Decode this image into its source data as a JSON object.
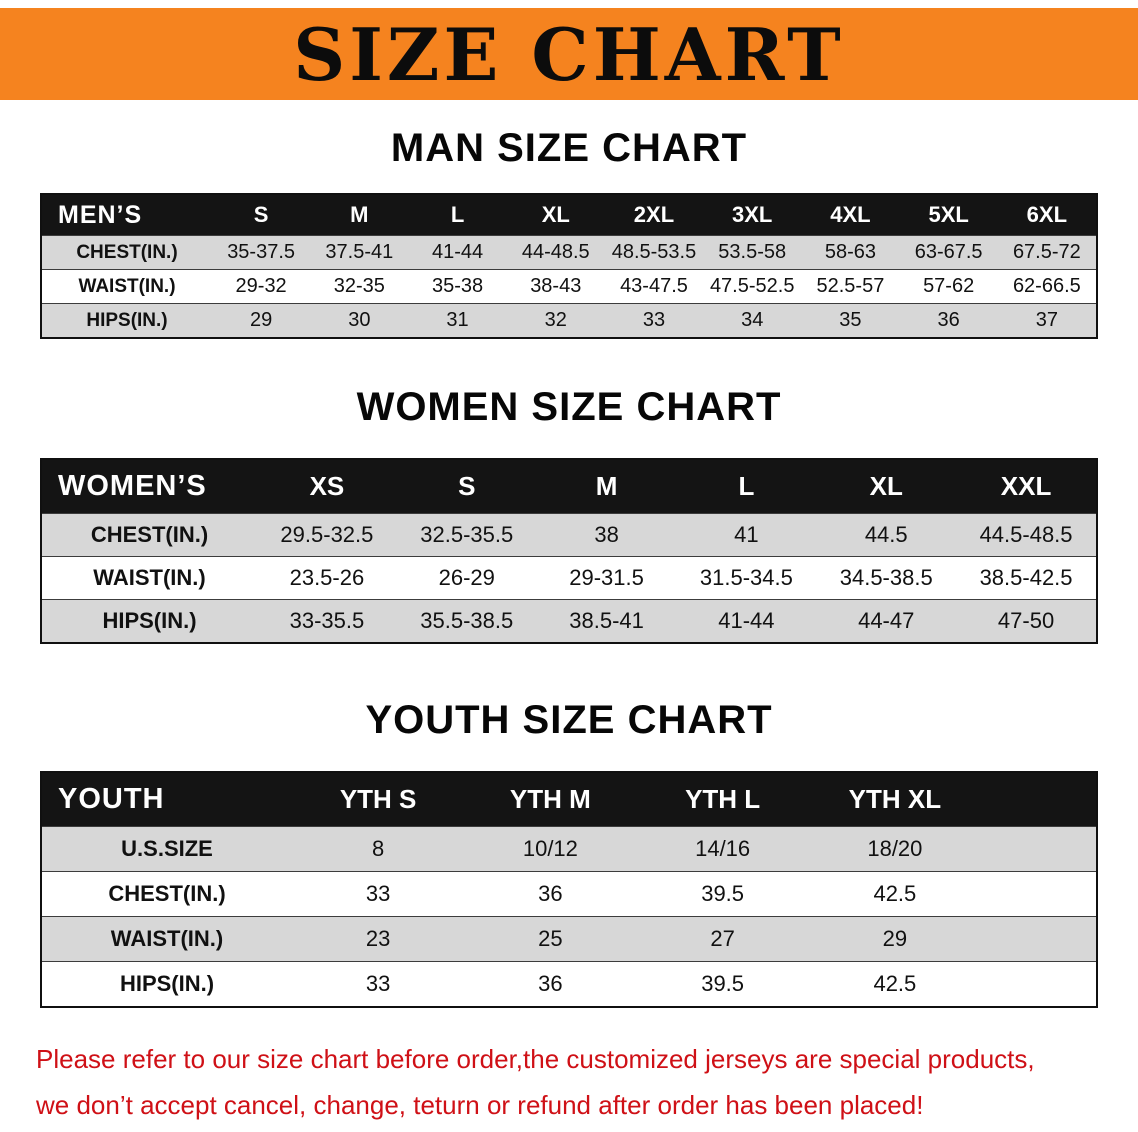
{
  "banner": {
    "title": "SIZE CHART",
    "bg_color": "#f5831f",
    "title_color": "#0c0c0c"
  },
  "sections": {
    "men": {
      "heading": "MAN SIZE CHART",
      "table": {
        "corner": "MEN’S",
        "columns": [
          "S",
          "M",
          "L",
          "XL",
          "2XL",
          "3XL",
          "4XL",
          "5XL",
          "6XL"
        ],
        "rows": [
          {
            "label": "CHEST(IN.)",
            "values": [
              "35-37.5",
              "37.5-41",
              "41-44",
              "44-48.5",
              "48.5-53.5",
              "53.5-58",
              "58-63",
              "63-67.5",
              "67.5-72"
            ]
          },
          {
            "label": "WAIST(IN.)",
            "values": [
              "29-32",
              "32-35",
              "35-38",
              "38-43",
              "43-47.5",
              "47.5-52.5",
              "52.5-57",
              "57-62",
              "62-66.5"
            ]
          },
          {
            "label": "HIPS(IN.)",
            "values": [
              "29",
              "30",
              "31",
              "32",
              "33",
              "34",
              "35",
              "36",
              "37"
            ]
          }
        ]
      }
    },
    "women": {
      "heading": "WOMEN SIZE CHART",
      "table": {
        "corner": "WOMEN’S",
        "columns": [
          "XS",
          "S",
          "M",
          "L",
          "XL",
          "XXL"
        ],
        "rows": [
          {
            "label": "CHEST(IN.)",
            "values": [
              "29.5-32.5",
              "32.5-35.5",
              "38",
              "41",
              "44.5",
              "44.5-48.5"
            ]
          },
          {
            "label": "WAIST(IN.)",
            "values": [
              "23.5-26",
              "26-29",
              "29-31.5",
              "31.5-34.5",
              "34.5-38.5",
              "38.5-42.5"
            ]
          },
          {
            "label": "HIPS(IN.)",
            "values": [
              "33-35.5",
              "35.5-38.5",
              "38.5-41",
              "41-44",
              "44-47",
              "47-50"
            ]
          }
        ]
      }
    },
    "youth": {
      "heading": "YOUTH SIZE CHART",
      "table": {
        "corner": "YOUTH",
        "columns": [
          "YTH S",
          "YTH M",
          "YTH L",
          "YTH XL"
        ],
        "rows": [
          {
            "label": "U.S.SIZE",
            "values": [
              "8",
              "10/12",
              "14/16",
              "18/20"
            ]
          },
          {
            "label": "CHEST(IN.)",
            "values": [
              "33",
              "36",
              "39.5",
              "42.5"
            ]
          },
          {
            "label": "WAIST(IN.)",
            "values": [
              "23",
              "25",
              "27",
              "29"
            ]
          },
          {
            "label": "HIPS(IN.)",
            "values": [
              "33",
              "36",
              "39.5",
              "42.5"
            ]
          }
        ]
      }
    }
  },
  "footer": {
    "line1": "Please refer to our size chart before order,the customized jerseys are special products,",
    "line2": "we don’t accept cancel, change, teturn or refund after order has been placed!",
    "text_color": "#cf1016"
  }
}
